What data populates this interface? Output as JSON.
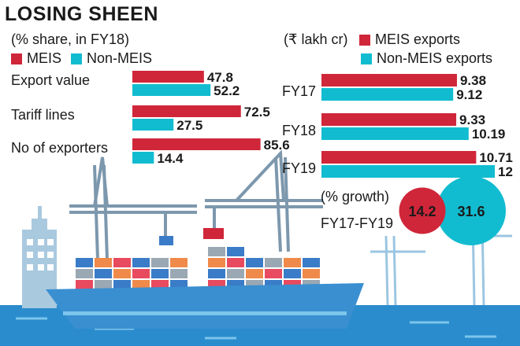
{
  "colors": {
    "meis": "#d0263a",
    "non_meis": "#12bcd0",
    "sea": "#2a8ccc",
    "text": "#1a1a1a"
  },
  "header": {
    "title": "LOSING SHEEN",
    "subtitle": "(% share, in FY18)"
  },
  "legend_left": {
    "meis": "MEIS",
    "non_meis": "Non-MEIS"
  },
  "legend_right": {
    "unit": "(₹ lakh cr)",
    "meis": "MEIS exports",
    "non_meis": "Non-MEIS exports"
  },
  "chart_data": [
    {
      "type": "bar",
      "orientation": "horizontal",
      "title": "(% share, in FY18)",
      "categories": [
        "Export value",
        "Tariff lines",
        "No of exporters"
      ],
      "series": [
        {
          "name": "MEIS",
          "values": [
            47.8,
            72.5,
            85.6
          ]
        },
        {
          "name": "Non-MEIS",
          "values": [
            52.2,
            27.5,
            14.4
          ]
        }
      ],
      "xlim": [
        0,
        100
      ]
    },
    {
      "type": "bar",
      "orientation": "horizontal",
      "title": "(₹ lakh cr)",
      "categories": [
        "FY17",
        "FY18",
        "FY19"
      ],
      "series": [
        {
          "name": "MEIS exports",
          "values": [
            9.38,
            9.33,
            10.71
          ]
        },
        {
          "name": "Non-MEIS exports",
          "values": [
            9.12,
            10.19,
            12
          ]
        }
      ],
      "xlim": [
        0,
        12
      ]
    },
    {
      "type": "bubble",
      "title": "(% growth)",
      "label": "FY17-FY19",
      "series": [
        {
          "name": "MEIS",
          "value": 14.2
        },
        {
          "name": "Non-MEIS",
          "value": 31.6
        }
      ]
    }
  ]
}
